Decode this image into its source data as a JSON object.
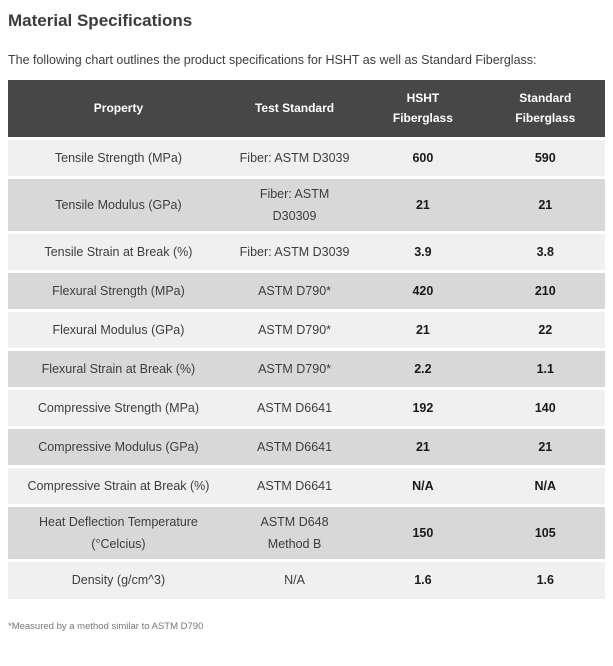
{
  "page": {
    "title": "Material Specifications",
    "intro": "The following chart outlines the product specifications for HSHT as well as Standard Fiberglass:",
    "footnote": "*Measured by a method similar to ASTM D790"
  },
  "colors": {
    "header_bg": "#474747",
    "header_text": "#ffffff",
    "row_light": "#f0f0f0",
    "row_dark": "#d8d8d8",
    "body_text": "#3d3d3d",
    "value_text": "#1a1a1a",
    "footnote_text": "#777777"
  },
  "table": {
    "header": {
      "property": "Property",
      "test_standard": "Test Standard",
      "hsht": "HSHT\nFiberglass",
      "standard": "Standard\nFiberglass"
    },
    "rows": [
      {
        "property": "Tensile Strength (MPa)",
        "test_standard": "Fiber: ASTM D3039",
        "hsht": "600",
        "standard": "590"
      },
      {
        "property": "Tensile Modulus (GPa)",
        "test_standard": "Fiber: ASTM D30309",
        "hsht": "21",
        "standard": "21"
      },
      {
        "property": "Tensile Strain at Break (%)",
        "test_standard": "Fiber: ASTM D3039",
        "hsht": "3.9",
        "standard": "3.8"
      },
      {
        "property": "Flexural Strength (MPa)",
        "test_standard": "ASTM D790*",
        "hsht": "420",
        "standard": "210"
      },
      {
        "property": "Flexural Modulus (GPa)",
        "test_standard": "ASTM D790*",
        "hsht": "21",
        "standard": "22"
      },
      {
        "property": "Flexural Strain at Break (%)",
        "test_standard": "ASTM D790*",
        "hsht": "2.2",
        "standard": "1.1"
      },
      {
        "property": "Compressive Strength (MPa)",
        "test_standard": "ASTM D6641",
        "hsht": "192",
        "standard": "140"
      },
      {
        "property": "Compressive Modulus (GPa)",
        "test_standard": "ASTM D6641",
        "hsht": "21",
        "standard": "21"
      },
      {
        "property": "Compressive Strain at Break (%)",
        "test_standard": "ASTM D6641",
        "hsht": "N/A",
        "standard": "N/A"
      },
      {
        "property": "Heat Deflection Temperature\n(°Celcius)",
        "test_standard": "ASTM D648\nMethod B",
        "hsht": "150",
        "standard": "105"
      },
      {
        "property": "Density (g/cm^3)",
        "test_standard": "N/A",
        "hsht": "1.6",
        "standard": "1.6"
      }
    ]
  }
}
